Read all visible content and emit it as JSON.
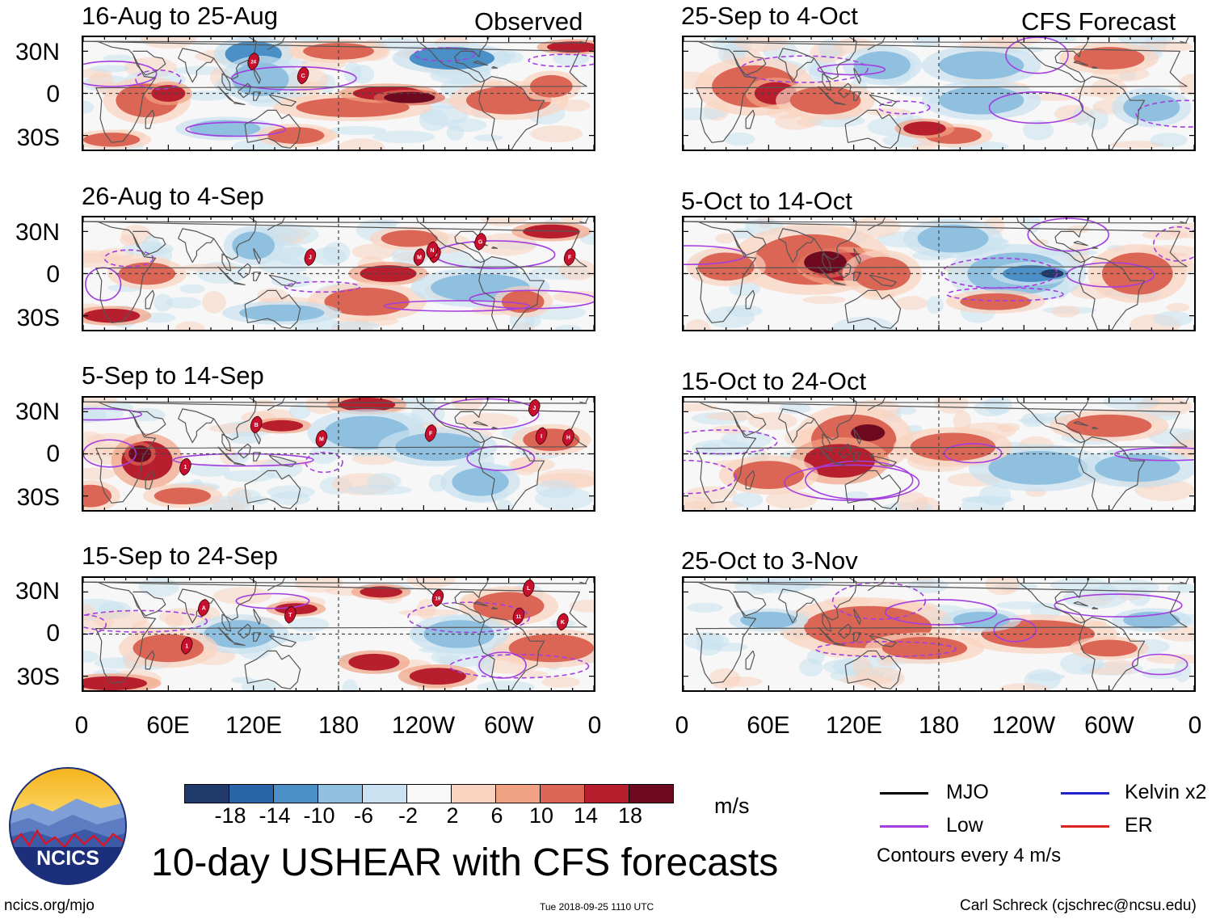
{
  "columns": {
    "left_title": "Observed",
    "right_title": "CFS Forecast"
  },
  "panels": [
    {
      "label": "16-Aug to 25-Aug",
      "col": 0,
      "row": 0,
      "storms": [
        {
          "id": "24",
          "lon": 120,
          "lat": 23
        },
        {
          "id": "C",
          "lon": 155,
          "lat": 13
        }
      ]
    },
    {
      "label": "26-Aug to 4-Sep",
      "col": 0,
      "row": 1,
      "storms": [
        {
          "id": "J",
          "lon": 160,
          "lat": 12
        },
        {
          "id": "M",
          "lon": 237,
          "lat": 12
        },
        {
          "id": "O",
          "lon": 248,
          "lat": 14
        },
        {
          "id": "N",
          "lon": 246,
          "lat": 17
        },
        {
          "id": "G",
          "lon": 280,
          "lat": 23
        },
        {
          "id": "F",
          "lon": 343,
          "lat": 12
        }
      ]
    },
    {
      "label": "5-Sep to 14-Sep",
      "col": 0,
      "row": 2,
      "storms": [
        {
          "id": "B",
          "lon": 122,
          "lat": 21
        },
        {
          "id": "M",
          "lon": 168,
          "lat": 11
        },
        {
          "id": "1",
          "lon": 72,
          "lat": -9
        },
        {
          "id": "F",
          "lon": 245,
          "lat": 15
        },
        {
          "id": "J",
          "lon": 318,
          "lat": 33
        },
        {
          "id": "I",
          "lon": 323,
          "lat": 13
        },
        {
          "id": "H",
          "lon": 342,
          "lat": 12
        }
      ]
    },
    {
      "label": "15-Sep to 24-Sep",
      "col": 0,
      "row": 3,
      "storms": [
        {
          "id": "A",
          "lon": 85,
          "lat": 19
        },
        {
          "id": "1",
          "lon": 73,
          "lat": -8
        },
        {
          "id": "T",
          "lon": 146,
          "lat": 14
        },
        {
          "id": "19",
          "lon": 250,
          "lat": 26
        },
        {
          "id": "L",
          "lon": 314,
          "lat": 33
        },
        {
          "id": "11",
          "lon": 307,
          "lat": 13
        },
        {
          "id": "K",
          "lon": 338,
          "lat": 9
        }
      ]
    },
    {
      "label": "25-Sep to 4-Oct",
      "col": 1,
      "row": 0,
      "storms": []
    },
    {
      "label": "5-Oct to 14-Oct",
      "col": 1,
      "row": 1,
      "storms": []
    },
    {
      "label": "15-Oct to 24-Oct",
      "col": 1,
      "row": 2,
      "storms": []
    },
    {
      "label": "25-Oct to 3-Nov",
      "col": 1,
      "row": 3,
      "storms": []
    }
  ],
  "axes": {
    "y_ticks": [
      "30N",
      "0",
      "30S"
    ],
    "x_ticks": [
      "0",
      "60E",
      "120E",
      "180",
      "120W",
      "60W",
      "0"
    ]
  },
  "colorbar": {
    "labels": [
      "-18",
      "-14",
      "-10",
      "-6",
      "-2",
      "2",
      "6",
      "10",
      "14",
      "18"
    ],
    "colors": [
      "#1f3a6b",
      "#2a64a8",
      "#4a90c6",
      "#8fc0df",
      "#c9e1f0",
      "#f9f9f9",
      "#f9d3bf",
      "#f1a283",
      "#dc6655",
      "#b71f2f",
      "#6e0a1f"
    ],
    "units": "m/s"
  },
  "legend": {
    "items": [
      {
        "label": "MJO",
        "color": "#000000"
      },
      {
        "label": "Kelvin x2",
        "color": "#2222cc"
      },
      {
        "label": "Low",
        "color": "#a43ee0"
      },
      {
        "label": "ER",
        "color": "#dd2222"
      }
    ],
    "contour_note": "Contours every 4 m/s"
  },
  "logo": {
    "text": "NCICS"
  },
  "main_title": "10-day USHEAR with CFS forecasts",
  "footer": {
    "left": "ncics.org/mjo",
    "center": "Tue 2018-09-25 1110 UTC",
    "right": "Carl Schreck (cjschrec@ncsu.edu)"
  },
  "style": {
    "storm_color": "#c8102e",
    "low_contour": "#a43ee0",
    "land_outline": "#555555",
    "equator_line": "#444444"
  }
}
